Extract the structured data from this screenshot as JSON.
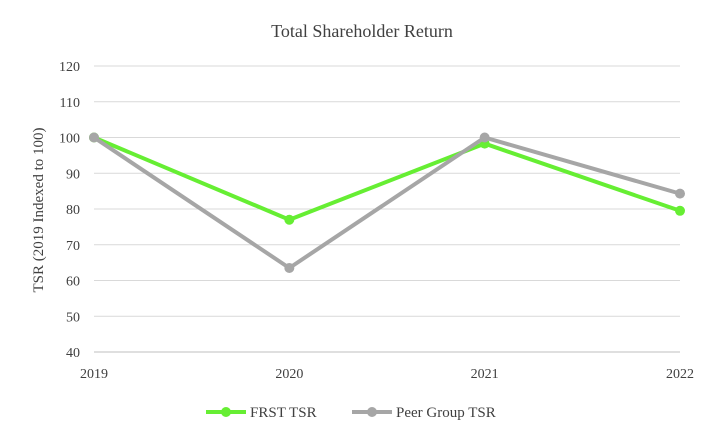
{
  "chart_data": {
    "type": "line",
    "title": "Total Shareholder Return",
    "xlabel": "",
    "ylabel": "TSR (2019 Indexed to 100)",
    "categories": [
      "2019",
      "2020",
      "2021",
      "2022"
    ],
    "ylim": [
      40,
      120
    ],
    "yticks": [
      40,
      50,
      60,
      70,
      80,
      90,
      100,
      110,
      120
    ],
    "grid": true,
    "legend_position": "bottom",
    "series": [
      {
        "name": "FRST TSR",
        "values": [
          100,
          77,
          98.3,
          79.5
        ],
        "color": "#66ee33"
      },
      {
        "name": "Peer Group TSR",
        "values": [
          100,
          63.5,
          100,
          84.3
        ],
        "color": "#a6a6a6"
      }
    ]
  }
}
